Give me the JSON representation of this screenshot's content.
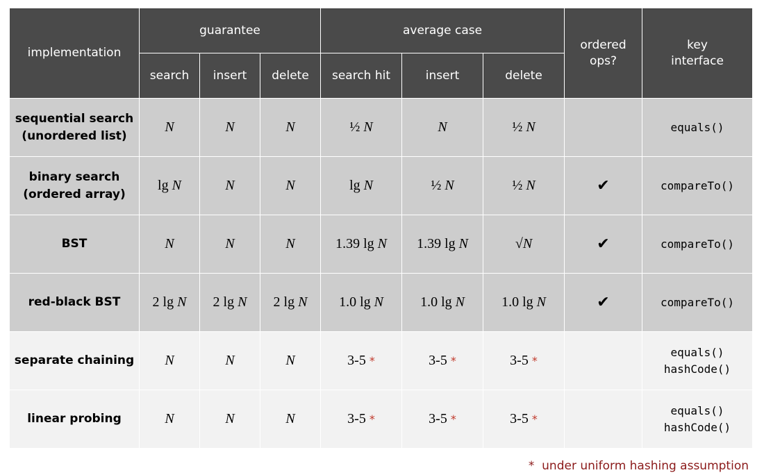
{
  "header": {
    "implementation": "implementation",
    "guarantee": "guarantee",
    "average_case": "average case",
    "ordered_ops": [
      "ordered",
      "ops?"
    ],
    "key_interface": [
      "key",
      "interface"
    ],
    "guarantee_cols": [
      "search",
      "insert",
      "delete"
    ],
    "average_cols": [
      "search hit",
      "insert",
      "delete"
    ]
  },
  "rows": [
    {
      "impl": [
        "sequential search",
        "(unordered list)"
      ],
      "cells": [
        {
          "pre": "",
          "n": "N"
        },
        {
          "pre": "",
          "n": "N"
        },
        {
          "pre": "",
          "n": "N"
        },
        {
          "pre": "½ ",
          "n": "N"
        },
        {
          "pre": "",
          "n": "N"
        },
        {
          "pre": "½ ",
          "n": "N"
        }
      ],
      "ordered": "",
      "key": [
        "equals()"
      ]
    },
    {
      "impl": [
        "binary search",
        "(ordered array)"
      ],
      "cells": [
        {
          "pre": "lg ",
          "n": "N"
        },
        {
          "pre": "",
          "n": "N"
        },
        {
          "pre": "",
          "n": "N"
        },
        {
          "pre": "lg ",
          "n": "N"
        },
        {
          "pre": "½ ",
          "n": "N"
        },
        {
          "pre": "½ ",
          "n": "N"
        }
      ],
      "ordered": "✔",
      "key": [
        "compareTo()"
      ]
    },
    {
      "impl": [
        "BST"
      ],
      "cells": [
        {
          "pre": "",
          "n": "N"
        },
        {
          "pre": "",
          "n": "N"
        },
        {
          "pre": "",
          "n": "N"
        },
        {
          "pre": "1.39 lg ",
          "n": "N"
        },
        {
          "pre": "1.39 lg ",
          "n": "N"
        },
        {
          "pre": "√",
          "n": "N"
        }
      ],
      "ordered": "✔",
      "key": [
        "compareTo()"
      ]
    },
    {
      "impl": [
        "red-black BST"
      ],
      "cells": [
        {
          "pre": "2 lg ",
          "n": "N"
        },
        {
          "pre": "2 lg ",
          "n": "N"
        },
        {
          "pre": "2 lg ",
          "n": "N"
        },
        {
          "pre": "1.0 lg ",
          "n": "N"
        },
        {
          "pre": "1.0 lg ",
          "n": "N"
        },
        {
          "pre": "1.0 lg ",
          "n": "N"
        }
      ],
      "ordered": "✔",
      "key": [
        "compareTo()"
      ]
    },
    {
      "impl": [
        "separate chaining"
      ],
      "cells": [
        {
          "pre": "",
          "n": "N"
        },
        {
          "pre": "",
          "n": "N"
        },
        {
          "pre": "",
          "n": "N"
        },
        {
          "pre": "3-5",
          "n": "",
          "star": "*"
        },
        {
          "pre": "3-5",
          "n": "",
          "star": "*"
        },
        {
          "pre": "3-5",
          "n": "",
          "star": "*"
        }
      ],
      "ordered": "",
      "key": [
        "equals()",
        "hashCode()"
      ]
    },
    {
      "impl": [
        "linear probing"
      ],
      "cells": [
        {
          "pre": "",
          "n": "N"
        },
        {
          "pre": "",
          "n": "N"
        },
        {
          "pre": "",
          "n": "N"
        },
        {
          "pre": "3-5",
          "n": "",
          "star": "*"
        },
        {
          "pre": "3-5",
          "n": "",
          "star": "*"
        },
        {
          "pre": "3-5",
          "n": "",
          "star": "*"
        }
      ],
      "ordered": "",
      "key": [
        "equals()",
        "hashCode()"
      ]
    }
  ],
  "footnote": {
    "star": "*",
    "text": "under uniform hashing assumption"
  },
  "colors": {
    "header_bg": "#4a4a4a",
    "symbol_row_bg": "#cdcdcd",
    "hash_row_bg": "#f2f2f2",
    "star": "#c0392b",
    "footnote": "#8b1a1a"
  }
}
